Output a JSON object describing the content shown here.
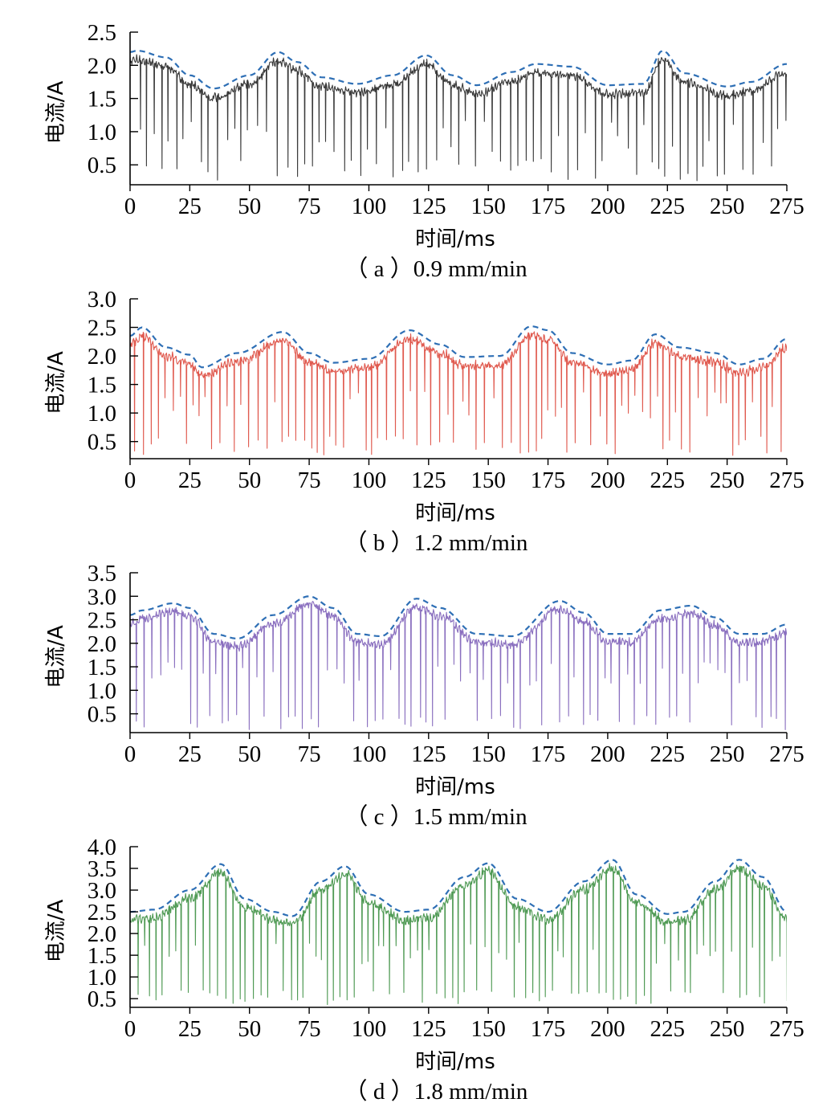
{
  "chart_data": [
    {
      "type": "line",
      "caption": "（ a ）0.9 mm/min",
      "xlabel": "时间/ms",
      "ylabel": "电流/A",
      "xlim": [
        0,
        275
      ],
      "ylim": [
        0.2,
        2.5
      ],
      "xticks": [
        0,
        25,
        50,
        75,
        100,
        125,
        150,
        175,
        200,
        225,
        250,
        275
      ],
      "yticks": [
        0.5,
        1.0,
        1.5,
        2.0,
        2.5
      ],
      "ytick_labels": [
        "0.5",
        "1.0",
        "1.5",
        "2.0",
        "2.5"
      ],
      "series_color": "#3a3a3a",
      "envelope_color": "#2e6fb5",
      "envelope": {
        "x": [
          0,
          3,
          15,
          25,
          35,
          50,
          62,
          70,
          80,
          95,
          110,
          124,
          135,
          145,
          160,
          170,
          185,
          200,
          215,
          223,
          232,
          250,
          260,
          275
        ],
        "y": [
          2.2,
          2.22,
          2.12,
          1.85,
          1.65,
          1.85,
          2.2,
          2.05,
          1.82,
          1.72,
          1.85,
          2.15,
          1.85,
          1.7,
          1.9,
          2.02,
          1.98,
          1.7,
          1.72,
          2.22,
          1.88,
          1.68,
          1.75,
          2.02
        ]
      },
      "signal": {
        "dip_spacing_ms": 3.3,
        "dip_min": 0.25,
        "dip_max": 1.2,
        "deep_dip_rate": 0.6,
        "noise": 0.1
      }
    },
    {
      "type": "line",
      "caption": "（ b ）1.2 mm/min",
      "xlabel": "时间/ms",
      "ylabel": "电流/A",
      "xlim": [
        0,
        275
      ],
      "ylim": [
        0.2,
        3.0
      ],
      "xticks": [
        0,
        25,
        50,
        75,
        100,
        125,
        150,
        175,
        200,
        225,
        250,
        275
      ],
      "yticks": [
        0.5,
        1.0,
        1.5,
        2.0,
        2.5,
        3.0
      ],
      "ytick_labels": [
        "0.5",
        "1.0",
        "1.5",
        "2.0",
        "2.5",
        "3.0"
      ],
      "series_color": "#e05a4f",
      "envelope_color": "#2e6fb5",
      "envelope": {
        "x": [
          0,
          5,
          15,
          25,
          30,
          45,
          64,
          75,
          85,
          100,
          117,
          130,
          140,
          155,
          168,
          175,
          185,
          200,
          210,
          220,
          230,
          245,
          255,
          265,
          275
        ],
        "y": [
          2.35,
          2.5,
          2.15,
          2.02,
          1.8,
          2.05,
          2.42,
          2.05,
          1.88,
          1.95,
          2.45,
          2.2,
          1.98,
          2.0,
          2.52,
          2.45,
          2.05,
          1.85,
          1.92,
          2.38,
          2.15,
          2.05,
          1.85,
          1.95,
          2.3
        ]
      },
      "signal": {
        "dip_spacing_ms": 3.0,
        "dip_min": 0.25,
        "dip_max": 1.4,
        "deep_dip_rate": 0.6,
        "noise": 0.12
      }
    },
    {
      "type": "line",
      "caption": "（ c ）1.5 mm/min",
      "xlabel": "时间/ms",
      "ylabel": "电流/A",
      "xlim": [
        0,
        275
      ],
      "ylim": [
        0.1,
        3.5
      ],
      "xticks": [
        0,
        25,
        50,
        75,
        100,
        125,
        150,
        175,
        200,
        225,
        250,
        275
      ],
      "yticks": [
        0.5,
        1.0,
        1.5,
        2.0,
        2.5,
        3.0,
        3.5
      ],
      "ytick_labels": [
        "0.5",
        "1.0",
        "1.5",
        "2.0",
        "2.5",
        "3.0",
        "3.5"
      ],
      "series_color": "#8a6fbf",
      "envelope_color": "#2e6fb5",
      "envelope": {
        "x": [
          0,
          5,
          18,
          25,
          35,
          45,
          60,
          75,
          85,
          95,
          105,
          120,
          130,
          145,
          160,
          180,
          190,
          200,
          210,
          222,
          235,
          245,
          255,
          265,
          275
        ],
        "y": [
          2.6,
          2.7,
          2.85,
          2.75,
          2.2,
          2.1,
          2.6,
          3.0,
          2.75,
          2.2,
          2.15,
          2.95,
          2.75,
          2.2,
          2.15,
          2.9,
          2.65,
          2.2,
          2.2,
          2.7,
          2.8,
          2.55,
          2.2,
          2.2,
          2.4
        ]
      },
      "signal": {
        "dip_spacing_ms": 3.0,
        "dip_min": 0.15,
        "dip_max": 1.6,
        "deep_dip_rate": 0.6,
        "noise": 0.14
      }
    },
    {
      "type": "line",
      "caption": "（ d ）1.8 mm/min",
      "xlabel": "时间/ms",
      "ylabel": "电流/A",
      "xlim": [
        0,
        275
      ],
      "ylim": [
        0.3,
        4.0
      ],
      "xticks": [
        0,
        25,
        50,
        75,
        100,
        125,
        150,
        175,
        200,
        225,
        250,
        275
      ],
      "yticks": [
        0.5,
        1.0,
        1.5,
        2.0,
        2.5,
        3.0,
        3.5,
        4.0
      ],
      "ytick_labels": [
        "0.5",
        "1.0",
        "1.5",
        "2.0",
        "2.5",
        "3.0",
        "3.5",
        "4.0"
      ],
      "series_color": "#4f9a54",
      "envelope_color": "#2e6fb5",
      "envelope": {
        "x": [
          0,
          10,
          25,
          38,
          48,
          60,
          68,
          80,
          90,
          100,
          115,
          125,
          140,
          150,
          162,
          175,
          190,
          202,
          212,
          225,
          232,
          245,
          255,
          265,
          275
        ],
        "y": [
          2.5,
          2.55,
          3.0,
          3.6,
          2.8,
          2.5,
          2.4,
          3.2,
          3.55,
          2.9,
          2.5,
          2.55,
          3.3,
          3.62,
          2.8,
          2.5,
          3.2,
          3.7,
          2.9,
          2.45,
          2.5,
          3.2,
          3.7,
          3.3,
          2.5
        ]
      },
      "signal": {
        "dip_spacing_ms": 2.7,
        "dip_min": 0.35,
        "dip_max": 1.8,
        "deep_dip_rate": 0.6,
        "noise": 0.16
      }
    }
  ]
}
